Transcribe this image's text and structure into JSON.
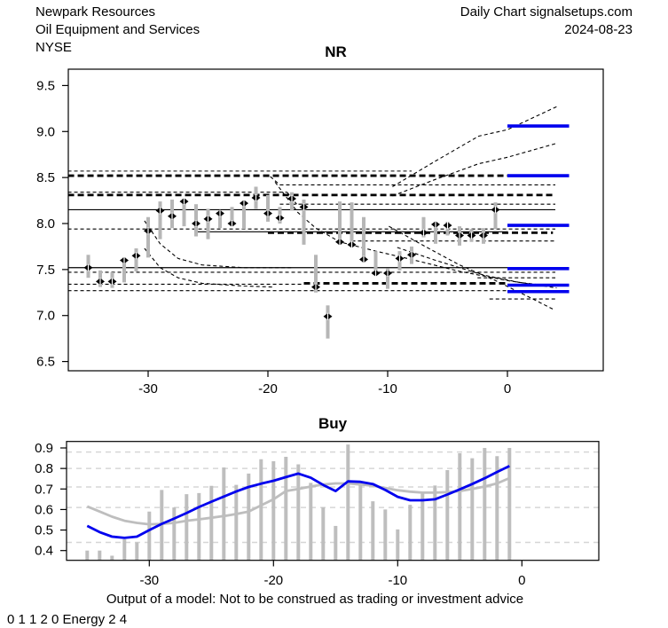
{
  "header": {
    "company": "Newpark Resources",
    "industry": "Oil Equipment and Services",
    "exchange": "NYSE",
    "chart_label": "Daily Chart signalsetups.com",
    "date": "2024-08-23"
  },
  "footer": {
    "disclaimer": "Output of a model: Not to be construed as trading or investment advice",
    "model_code": "0 1 1 2 0 Energy 2 4"
  },
  "colors": {
    "blue": "#0000EE",
    "bar_gray": "#B6B6B6",
    "line_gray": "#BEBEBE",
    "grid_gray": "#D6D6D6",
    "black": "#000000"
  },
  "chart_data": [
    {
      "type": "bar",
      "subtype": "daily-high-low-close-with-forecast",
      "title": "NR",
      "xlabel": "",
      "ylabel": "",
      "xlim": [
        -36.7,
        8.0
      ],
      "ylim": [
        6.4,
        9.68
      ],
      "xticks": [
        -30,
        -20,
        -10,
        0
      ],
      "yticks": [
        6.5,
        7.0,
        7.5,
        8.0,
        8.5,
        9.0,
        9.5
      ],
      "grid": false,
      "bars": [
        [
          -35,
          7.66,
          7.41,
          7.52
        ],
        [
          -34,
          7.49,
          7.31,
          7.37
        ],
        [
          -33,
          7.47,
          7.3,
          7.37
        ],
        [
          -32,
          7.63,
          7.36,
          7.6
        ],
        [
          -31,
          7.73,
          7.48,
          7.65
        ],
        [
          -30,
          8.07,
          7.63,
          7.92
        ],
        [
          -29,
          8.24,
          7.83,
          8.14
        ],
        [
          -28,
          8.26,
          7.95,
          8.08
        ],
        [
          -27,
          8.27,
          7.97,
          8.24
        ],
        [
          -26,
          8.21,
          7.86,
          8.0
        ],
        [
          -25,
          8.16,
          7.83,
          8.05
        ],
        [
          -24,
          8.14,
          7.95,
          8.11
        ],
        [
          -23,
          8.18,
          7.97,
          8.0
        ],
        [
          -22,
          8.24,
          7.94,
          8.22
        ],
        [
          -21,
          8.4,
          8.16,
          8.28
        ],
        [
          -20,
          8.31,
          8.02,
          8.11
        ],
        [
          -19,
          8.18,
          8.0,
          8.06
        ],
        [
          -18,
          8.34,
          8.14,
          8.27
        ],
        [
          -17,
          8.26,
          7.77,
          8.18
        ],
        [
          -16,
          7.66,
          7.25,
          7.31
        ],
        [
          -15,
          7.11,
          6.75,
          6.99
        ],
        [
          -14,
          8.24,
          7.77,
          7.8
        ],
        [
          -13,
          8.23,
          7.75,
          7.77
        ],
        [
          -12,
          8.07,
          7.58,
          7.61
        ],
        [
          -11,
          7.7,
          7.44,
          7.46
        ],
        [
          -10,
          7.51,
          7.29,
          7.46
        ],
        [
          -9,
          7.7,
          7.49,
          7.62
        ],
        [
          -8,
          7.75,
          7.56,
          7.66
        ],
        [
          -7,
          8.07,
          7.85,
          7.9
        ],
        [
          -6,
          8.0,
          7.78,
          7.99
        ],
        [
          -5,
          8.02,
          7.87,
          7.98
        ],
        [
          -4,
          7.97,
          7.76,
          7.87
        ],
        [
          -3,
          7.94,
          7.8,
          7.87
        ],
        [
          -2,
          7.95,
          7.78,
          7.87
        ],
        [
          -1,
          8.23,
          7.94,
          8.15
        ]
      ],
      "hlines": [
        {
          "value": 8.57,
          "style": "dashed",
          "from": -36.7,
          "to": -8
        },
        {
          "value": 8.52,
          "style": "bold",
          "from": -36.7,
          "to": 0
        },
        {
          "value": 8.42,
          "style": "dashed",
          "from": -19.0,
          "to": 4.0
        },
        {
          "value": 8.34,
          "style": "dashed",
          "from": -36.7,
          "to": -18.4
        },
        {
          "value": 8.31,
          "style": "bold",
          "from": -36.7,
          "to": 4.0
        },
        {
          "value": 8.21,
          "style": "dashed",
          "from": -19.0,
          "to": 4.0
        },
        {
          "value": 8.15,
          "style": "solid",
          "from": -36.7,
          "to": 4.0
        },
        {
          "value": 7.94,
          "style": "dashed",
          "from": -36.7,
          "to": 4.0
        },
        {
          "value": 7.91,
          "style": "solid",
          "from": -26.0,
          "to": 0
        },
        {
          "value": 7.9,
          "style": "bold",
          "from": -20.0,
          "to": 3.8
        },
        {
          "value": 7.81,
          "style": "dashed",
          "from": -13.0,
          "to": 4.0
        },
        {
          "value": 7.52,
          "style": "solid",
          "from": -36.7,
          "to": 0
        },
        {
          "value": 7.47,
          "style": "dashed",
          "from": -36.7,
          "to": 4.0
        },
        {
          "value": 7.41,
          "style": "dashed",
          "from": -2.5,
          "to": 4.0
        },
        {
          "value": 7.35,
          "style": "bold",
          "from": -17.0,
          "to": 0
        },
        {
          "value": 7.34,
          "style": "dashed",
          "from": -36.7,
          "to": -17.0
        },
        {
          "value": 7.27,
          "style": "dashed",
          "from": -36.7,
          "to": 4.0
        },
        {
          "value": 7.18,
          "style": "dashed",
          "from": -1.5,
          "to": 4.0
        }
      ],
      "curves": [
        {
          "points": [
            [
              -9.6,
              8.4
            ],
            [
              -6,
              8.68
            ],
            [
              -2.4,
              8.95
            ],
            [
              0,
              9.02
            ],
            [
              4.1,
              9.27
            ]
          ]
        },
        {
          "points": [
            [
              -9.6,
              8.3
            ],
            [
              -6,
              8.48
            ],
            [
              -2.4,
              8.65
            ],
            [
              0,
              8.72
            ],
            [
              4.05,
              8.87
            ]
          ]
        },
        {
          "points": [
            [
              -19.4,
              8.45
            ],
            [
              -17.5,
              8.12
            ],
            [
              -16,
              7.95
            ],
            [
              -14,
              7.8
            ],
            [
              -11,
              7.7
            ],
            [
              -8,
              7.61
            ],
            [
              -4,
              7.48
            ],
            [
              0,
              7.38
            ],
            [
              4.1,
              7.3
            ]
          ]
        },
        {
          "points": [
            [
              -9.9,
              7.97
            ],
            [
              -7,
              7.76
            ],
            [
              -4,
              7.55
            ],
            [
              -1,
              7.38
            ],
            [
              1.5,
              7.22
            ],
            [
              3.8,
              7.07
            ]
          ]
        },
        {
          "points": [
            [
              -9.2,
              7.74
            ],
            [
              -6,
              7.6
            ],
            [
              -2,
              7.44
            ],
            [
              1,
              7.36
            ],
            [
              3,
              7.33
            ]
          ]
        },
        {
          "points": [
            [
              -30.3,
              8.03
            ],
            [
              -29,
              7.78
            ],
            [
              -27.5,
              7.62
            ],
            [
              -25.5,
              7.55
            ],
            [
              -22,
              7.52
            ],
            [
              -18,
              7.52
            ]
          ]
        },
        {
          "points": [
            [
              -30.3,
              7.73
            ],
            [
              -29,
              7.52
            ],
            [
              -27.5,
              7.41
            ],
            [
              -25.5,
              7.35
            ],
            [
              -22,
              7.32
            ],
            [
              -19.5,
              7.31
            ]
          ]
        },
        {
          "points": [
            [
              -19.8,
              8.51
            ],
            [
              -19.0,
              8.42
            ]
          ]
        },
        {
          "points": [
            [
              -18.4,
              8.34
            ],
            [
              -17.6,
              8.21
            ]
          ]
        }
      ],
      "forecast_levels": {
        "from": 0,
        "to": 5.15,
        "values": [
          9.06,
          8.52,
          7.98,
          7.51,
          7.33,
          7.26
        ]
      }
    },
    {
      "type": "line",
      "subtype": "model-output-with-bars",
      "title": "Buy",
      "xlabel": "",
      "ylabel": "",
      "xlim": [
        -36.7,
        6.2
      ],
      "ylim": [
        0.352,
        0.932
      ],
      "xticks": [
        -30,
        -20,
        -10,
        0
      ],
      "yticks": [
        0.4,
        0.5,
        0.6,
        0.7,
        0.8,
        0.9
      ],
      "gridlines": [
        0.88,
        0.8,
        0.71,
        0.61,
        0.44
      ],
      "x": [
        -35,
        -34,
        -33,
        -32,
        -31,
        -30,
        -29,
        -28,
        -27,
        -26,
        -25,
        -24,
        -23,
        -22,
        -21,
        -20,
        -19,
        -18,
        -17,
        -16,
        -15,
        -14,
        -13,
        -12,
        -11,
        -10,
        -9,
        -8,
        -7,
        -6,
        -5,
        -4,
        -3,
        -2,
        -1
      ],
      "bar_tops": [
        0.4,
        0.4,
        0.375,
        0.455,
        0.44,
        0.59,
        0.695,
        0.61,
        0.675,
        0.68,
        0.715,
        0.805,
        0.72,
        0.775,
        0.845,
        0.835,
        0.857,
        0.82,
        0.73,
        0.61,
        0.52,
        0.917,
        0.734,
        0.64,
        0.6,
        0.503,
        0.623,
        0.683,
        0.717,
        0.792,
        0.874,
        0.85,
        0.9,
        0.86,
        0.9
      ],
      "series": [
        {
          "name": "model-output",
          "color": "blue",
          "values": [
            0.52,
            0.49,
            0.468,
            0.462,
            0.468,
            0.5,
            0.53,
            0.556,
            0.583,
            0.612,
            0.638,
            0.663,
            0.688,
            0.71,
            0.726,
            0.74,
            0.758,
            0.775,
            0.755,
            0.72,
            0.69,
            0.737,
            0.735,
            0.724,
            0.695,
            0.662,
            0.645,
            0.645,
            0.65,
            0.673,
            0.698,
            0.724,
            0.752,
            0.783,
            0.812
          ]
        },
        {
          "name": "smoothed-output",
          "color": "gray",
          "values": [
            0.615,
            0.59,
            0.565,
            0.545,
            0.535,
            0.528,
            0.53,
            0.535,
            0.545,
            0.552,
            0.56,
            0.568,
            0.578,
            0.59,
            0.62,
            0.65,
            0.69,
            0.7,
            0.712,
            0.722,
            0.727,
            0.727,
            0.722,
            0.716,
            0.705,
            0.694,
            0.687,
            0.682,
            0.682,
            0.685,
            0.69,
            0.7,
            0.712,
            0.727,
            0.753
          ]
        }
      ]
    }
  ]
}
